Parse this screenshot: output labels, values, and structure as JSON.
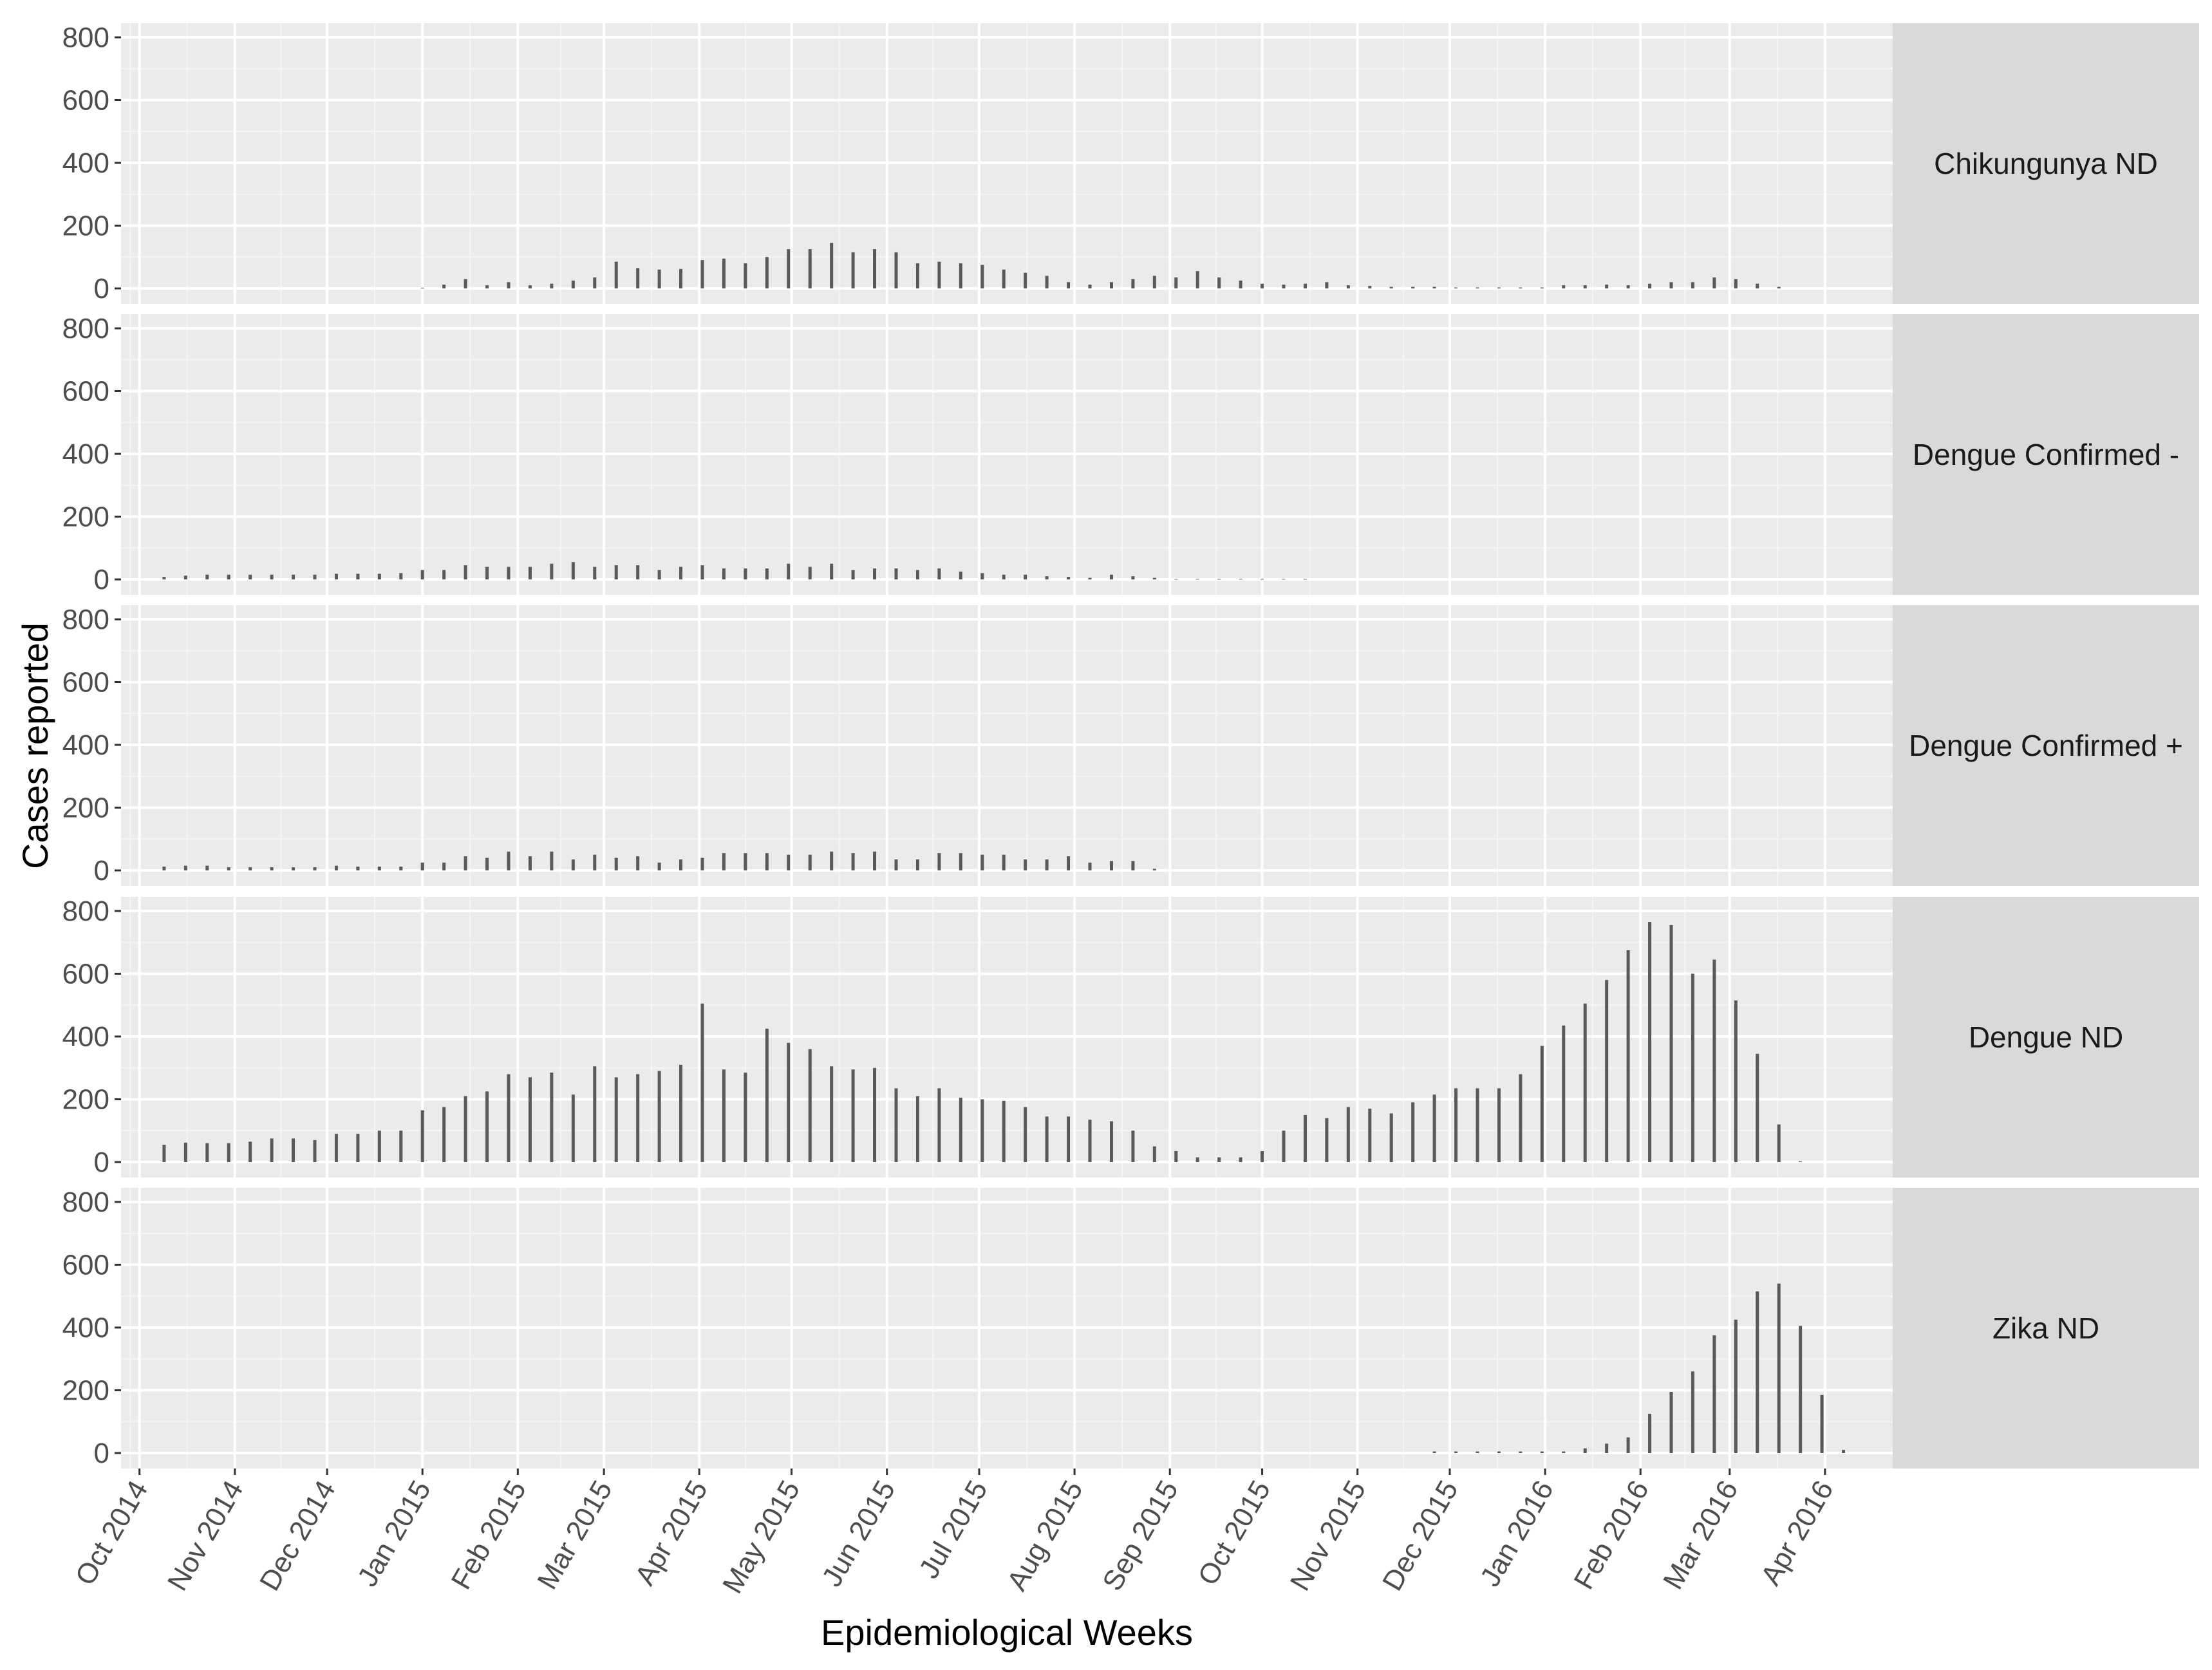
{
  "chart_data": {
    "type": "bar",
    "xlabel": "Epidemiological Weeks",
    "ylabel": "Cases reported",
    "ylim": [
      0,
      800
    ],
    "y_ticks": [
      0,
      200,
      400,
      600,
      800
    ],
    "grid": true,
    "x_start": "2014-09-25",
    "x_end": "2016-04-23",
    "x_ticks": [
      {
        "label": "Oct 2014",
        "date": "2014-10-01"
      },
      {
        "label": "Nov 2014",
        "date": "2014-11-01"
      },
      {
        "label": "Dec 2014",
        "date": "2014-12-01"
      },
      {
        "label": "Jan 2015",
        "date": "2015-01-01"
      },
      {
        "label": "Feb 2015",
        "date": "2015-02-01"
      },
      {
        "label": "Mar 2015",
        "date": "2015-03-01"
      },
      {
        "label": "Apr 2015",
        "date": "2015-04-01"
      },
      {
        "label": "May 2015",
        "date": "2015-05-01"
      },
      {
        "label": "Jun 2015",
        "date": "2015-06-01"
      },
      {
        "label": "Jul 2015",
        "date": "2015-07-01"
      },
      {
        "label": "Aug 2015",
        "date": "2015-08-01"
      },
      {
        "label": "Sep 2015",
        "date": "2015-09-01"
      },
      {
        "label": "Oct 2015",
        "date": "2015-10-01"
      },
      {
        "label": "Nov 2015",
        "date": "2015-11-01"
      },
      {
        "label": "Dec 2015",
        "date": "2015-12-01"
      },
      {
        "label": "Jan 2016",
        "date": "2016-01-01"
      },
      {
        "label": "Feb 2016",
        "date": "2016-02-01"
      },
      {
        "label": "Mar 2016",
        "date": "2016-03-01"
      },
      {
        "label": "Apr 2016",
        "date": "2016-04-01"
      }
    ],
    "bar_color": "#595959",
    "panel_background": "#ebebeb",
    "strip_background": "#d9d9d9",
    "panels": [
      {
        "name": "Chikungunya ND",
        "start_week": "2015-01-01",
        "values": [
          2,
          12,
          30,
          10,
          20,
          10,
          15,
          25,
          35,
          85,
          65,
          60,
          62,
          90,
          95,
          80,
          100,
          125,
          125,
          145,
          115,
          125,
          115,
          80,
          85,
          80,
          75,
          60,
          50,
          40,
          20,
          12,
          20,
          30,
          40,
          35,
          55,
          35,
          25,
          15,
          12,
          15,
          20,
          10,
          8,
          5,
          5,
          5,
          3,
          3,
          3,
          3,
          3,
          10,
          10,
          12,
          10,
          15,
          20,
          20,
          35,
          30,
          15,
          5
        ]
      },
      {
        "name": "Dengue Confirmed -",
        "start_week": "2014-10-09",
        "values": [
          8,
          12,
          15,
          15,
          15,
          15,
          15,
          15,
          18,
          18,
          18,
          20,
          30,
          30,
          45,
          40,
          40,
          40,
          50,
          55,
          40,
          45,
          45,
          30,
          40,
          45,
          35,
          35,
          35,
          50,
          40,
          50,
          30,
          35,
          35,
          30,
          35,
          25,
          20,
          15,
          15,
          10,
          8,
          5,
          15,
          10,
          5,
          2,
          2,
          2,
          2,
          2,
          2,
          2
        ]
      },
      {
        "name": "Dengue Confirmed +",
        "start_week": "2014-10-09",
        "values": [
          12,
          15,
          15,
          10,
          10,
          10,
          10,
          10,
          15,
          12,
          12,
          12,
          25,
          25,
          45,
          40,
          60,
          45,
          60,
          35,
          50,
          40,
          45,
          25,
          35,
          40,
          55,
          55,
          55,
          50,
          50,
          60,
          55,
          60,
          35,
          35,
          55,
          55,
          50,
          50,
          35,
          35,
          45,
          25,
          30,
          30,
          5
        ]
      },
      {
        "name": "Dengue ND",
        "start_week": "2014-10-09",
        "values": [
          55,
          62,
          60,
          60,
          65,
          75,
          75,
          70,
          90,
          90,
          100,
          100,
          165,
          175,
          210,
          225,
          280,
          270,
          285,
          215,
          305,
          270,
          280,
          290,
          310,
          505,
          295,
          285,
          425,
          380,
          360,
          305,
          295,
          300,
          235,
          210,
          235,
          205,
          200,
          195,
          175,
          145,
          145,
          135,
          130,
          100,
          50,
          35,
          15,
          15,
          15,
          35,
          100,
          150,
          140,
          175,
          170,
          155,
          190,
          215,
          235,
          235,
          235,
          280,
          370,
          435,
          505,
          580,
          675,
          765,
          755,
          600,
          645,
          515,
          345,
          120,
          2
        ]
      },
      {
        "name": "Zika ND",
        "start_week": "2015-11-26",
        "values": [
          5,
          5,
          5,
          5,
          5,
          5,
          5,
          15,
          30,
          50,
          125,
          195,
          260,
          375,
          425,
          515,
          540,
          405,
          185,
          10
        ]
      }
    ]
  }
}
